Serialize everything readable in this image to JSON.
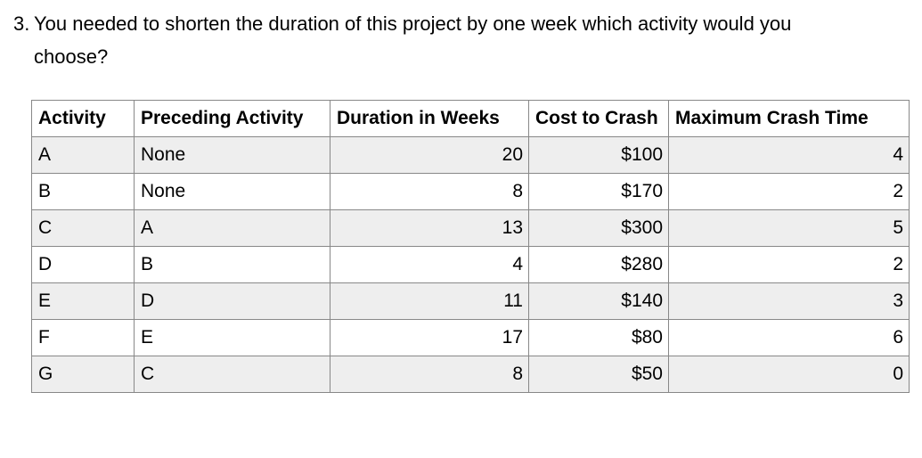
{
  "question": {
    "number": "3.",
    "text": "You needed to shorten the duration of this project by one week which activity would you choose?",
    "lines": [
      "You needed to shorten the duration of this project by one week which activity would you",
      "choose?"
    ]
  },
  "table": {
    "columns": [
      "Activity",
      "Preceding Activity",
      "Duration in Weeks",
      "Cost to Crash",
      "Maximum Crash Time"
    ],
    "rows": [
      [
        "A",
        "None",
        "20",
        "$100",
        "4"
      ],
      [
        "B",
        "None",
        "8",
        "$170",
        "2"
      ],
      [
        "C",
        "A",
        "13",
        "$300",
        "5"
      ],
      [
        "D",
        "B",
        "4",
        "$280",
        "2"
      ],
      [
        "E",
        "D",
        "11",
        "$140",
        "3"
      ],
      [
        "F",
        "E",
        "17",
        "$80",
        "6"
      ],
      [
        "G",
        "C",
        "8",
        "$50",
        "0"
      ]
    ],
    "numeric_columns": [
      2,
      3,
      4
    ]
  },
  "colors": {
    "text": "#000000",
    "band": "#eeeeee",
    "border": "#888888",
    "background": "#ffffff"
  }
}
